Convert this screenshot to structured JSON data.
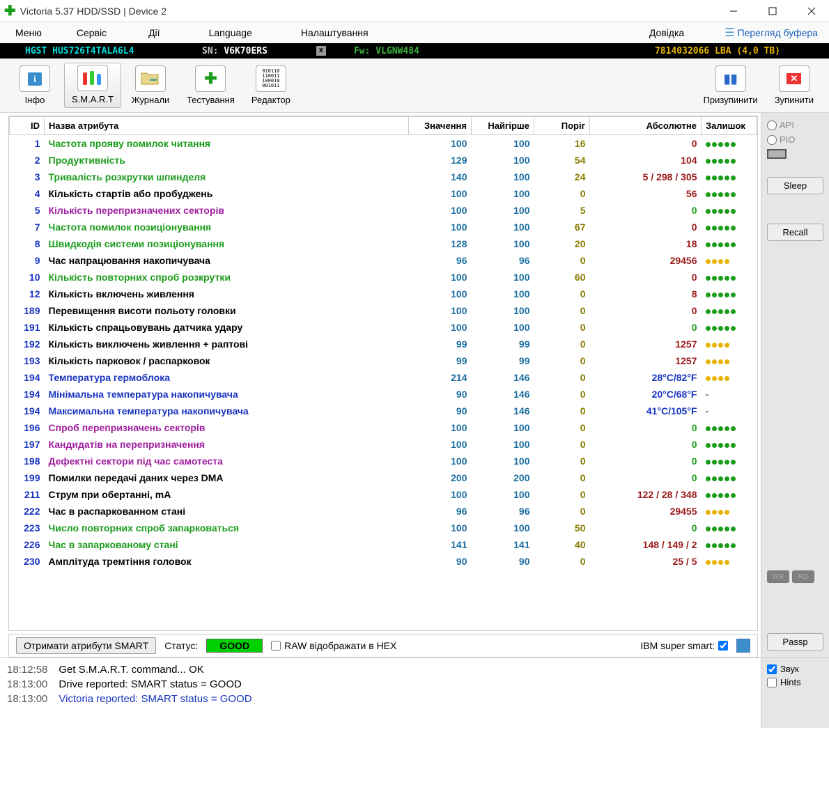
{
  "window": {
    "title": "Victoria 5.37 HDD/SSD | Device 2"
  },
  "menu": {
    "items": [
      "Меню",
      "Сервіс",
      "Дії",
      "Language",
      "Налаштування",
      "Довідка"
    ],
    "buffer": "Перегляд буфера"
  },
  "infobar": {
    "model": "HGST HUS726T4TALA6L4",
    "sn_label": "SN:",
    "sn": "V6K70ERS",
    "fw": "Fw: VLGNW484",
    "lba": "7814032066 LBA (4,0 TB)"
  },
  "toolbar": {
    "info": "Інфо",
    "smart": "S.M.A.R.T",
    "logs": "Журнали",
    "test": "Тестування",
    "editor": "Редактор",
    "pause": "Призупинити",
    "stop": "Зупинити"
  },
  "table": {
    "headers": {
      "id": "ID",
      "name": "Назва атрибута",
      "val": "Значення",
      "worst": "Найгірше",
      "thr": "Поріг",
      "abs": "Абсолютне",
      "health": "Залишок"
    },
    "rows": [
      {
        "id": 1,
        "name": "Частота прояву помилок читання",
        "name_c": "c-green",
        "val": 100,
        "worst": 100,
        "thr": 16,
        "thr_c": "c-olive",
        "abs": "0",
        "abs_c": "c-darkred",
        "h": "g5"
      },
      {
        "id": 2,
        "name": "Продуктивність",
        "name_c": "c-green",
        "val": 129,
        "worst": 100,
        "thr": 54,
        "thr_c": "c-olive",
        "abs": "104",
        "abs_c": "c-darkred",
        "h": "g5"
      },
      {
        "id": 3,
        "name": "Тривалість розкрутки шпинделя",
        "name_c": "c-green",
        "val": 140,
        "worst": 100,
        "thr": 24,
        "thr_c": "c-olive",
        "abs": "5 / 298 / 305",
        "abs_c": "c-darkred",
        "h": "g5"
      },
      {
        "id": 4,
        "name": "Кількість стартів або пробуджень",
        "name_c": "c-black",
        "val": 100,
        "worst": 100,
        "thr": 0,
        "thr_c": "c-olive",
        "abs": "56",
        "abs_c": "c-darkred",
        "h": "g5"
      },
      {
        "id": 5,
        "name": "Кількість перепризначених секторів",
        "name_c": "c-purple",
        "val": 100,
        "worst": 100,
        "thr": 5,
        "thr_c": "c-olive",
        "abs": "0",
        "abs_c": "c-green",
        "h": "g5"
      },
      {
        "id": 7,
        "name": "Частота помилок позиціонування",
        "name_c": "c-green",
        "val": 100,
        "worst": 100,
        "thr": 67,
        "thr_c": "c-olive",
        "abs": "0",
        "abs_c": "c-darkred",
        "h": "g5"
      },
      {
        "id": 8,
        "name": "Швидкодія системи позиціонування",
        "name_c": "c-green",
        "val": 128,
        "worst": 100,
        "thr": 20,
        "thr_c": "c-olive",
        "abs": "18",
        "abs_c": "c-darkred",
        "h": "g5"
      },
      {
        "id": 9,
        "name": "Час напрацювання накопичувача",
        "name_c": "c-black",
        "val": 96,
        "worst": 96,
        "thr": 0,
        "thr_c": "c-olive",
        "abs": "29456",
        "abs_c": "c-darkred",
        "h": "y4"
      },
      {
        "id": 10,
        "name": "Кількість повторних спроб розкрутки",
        "name_c": "c-green",
        "val": 100,
        "worst": 100,
        "thr": 60,
        "thr_c": "c-olive",
        "abs": "0",
        "abs_c": "c-darkred",
        "h": "g5"
      },
      {
        "id": 12,
        "name": "Кількість включень живлення",
        "name_c": "c-black",
        "val": 100,
        "worst": 100,
        "thr": 0,
        "thr_c": "c-olive",
        "abs": "8",
        "abs_c": "c-darkred",
        "h": "g5"
      },
      {
        "id": 189,
        "name": "Перевищення висоти польоту головки",
        "name_c": "c-black",
        "val": 100,
        "worst": 100,
        "thr": 0,
        "thr_c": "c-olive",
        "abs": "0",
        "abs_c": "c-darkred",
        "h": "g5"
      },
      {
        "id": 191,
        "name": "Кількість спрацьовувань датчика удару",
        "name_c": "c-black",
        "val": 100,
        "worst": 100,
        "thr": 0,
        "thr_c": "c-olive",
        "abs": "0",
        "abs_c": "c-green",
        "h": "g5"
      },
      {
        "id": 192,
        "name": "Кількість виключень живлення + раптові",
        "name_c": "c-black",
        "val": 99,
        "worst": 99,
        "thr": 0,
        "thr_c": "c-olive",
        "abs": "1257",
        "abs_c": "c-darkred",
        "h": "y4"
      },
      {
        "id": 193,
        "name": "Кількість парковок / распарковок",
        "name_c": "c-black",
        "val": 99,
        "worst": 99,
        "thr": 0,
        "thr_c": "c-olive",
        "abs": "1257",
        "abs_c": "c-darkred",
        "h": "y4"
      },
      {
        "id": 194,
        "name": "Температура гермоблока",
        "name_c": "c-blue",
        "val": 214,
        "worst": 146,
        "thr": 0,
        "thr_c": "c-olive",
        "abs": "28°C/82°F",
        "abs_c": "c-blue",
        "h": "y4"
      },
      {
        "id": 194,
        "name": "Мінімальна температура накопичувача",
        "name_c": "c-blue",
        "val": 90,
        "worst": 146,
        "thr": 0,
        "thr_c": "c-olive",
        "abs": "20°C/68°F",
        "abs_c": "c-blue",
        "h": "-"
      },
      {
        "id": 194,
        "name": "Максимальна температура накопичувача",
        "name_c": "c-blue",
        "val": 90,
        "worst": 146,
        "thr": 0,
        "thr_c": "c-olive",
        "abs": "41°C/105°F",
        "abs_c": "c-blue",
        "h": "-"
      },
      {
        "id": 196,
        "name": "Спроб перепризначень секторів",
        "name_c": "c-purple",
        "val": 100,
        "worst": 100,
        "thr": 0,
        "thr_c": "c-olive",
        "abs": "0",
        "abs_c": "c-green",
        "h": "g5"
      },
      {
        "id": 197,
        "name": "Кандидатів на перепризначення",
        "name_c": "c-purple",
        "val": 100,
        "worst": 100,
        "thr": 0,
        "thr_c": "c-olive",
        "abs": "0",
        "abs_c": "c-green",
        "h": "g5"
      },
      {
        "id": 198,
        "name": "Дефектні сектори під час самотеста",
        "name_c": "c-purple",
        "val": 100,
        "worst": 100,
        "thr": 0,
        "thr_c": "c-olive",
        "abs": "0",
        "abs_c": "c-green",
        "h": "g5"
      },
      {
        "id": 199,
        "name": "Помилки передачі даних через DMA",
        "name_c": "c-black",
        "val": 200,
        "worst": 200,
        "thr": 0,
        "thr_c": "c-olive",
        "abs": "0",
        "abs_c": "c-green",
        "h": "g5"
      },
      {
        "id": 211,
        "name": "Струм при обертанні, mA",
        "name_c": "c-black",
        "val": 100,
        "worst": 100,
        "thr": 0,
        "thr_c": "c-olive",
        "abs": "122 / 28 / 348",
        "abs_c": "c-darkred",
        "h": "g5"
      },
      {
        "id": 222,
        "name": "Час в распаркованном стані",
        "name_c": "c-black",
        "val": 96,
        "worst": 96,
        "thr": 0,
        "thr_c": "c-olive",
        "abs": "29455",
        "abs_c": "c-darkred",
        "h": "y4"
      },
      {
        "id": 223,
        "name": "Число повторних спроб запарковаться",
        "name_c": "c-green",
        "val": 100,
        "worst": 100,
        "thr": 50,
        "thr_c": "c-olive",
        "abs": "0",
        "abs_c": "c-green",
        "h": "g5"
      },
      {
        "id": 226,
        "name": "Час в запаркованому стані",
        "name_c": "c-green",
        "val": 141,
        "worst": 141,
        "thr": 40,
        "thr_c": "c-olive",
        "abs": "148 / 149 / 2",
        "abs_c": "c-darkred",
        "h": "g5"
      },
      {
        "id": 230,
        "name": "Амплітуда тремтіння головок",
        "name_c": "c-black",
        "val": 90,
        "worst": 90,
        "thr": 0,
        "thr_c": "c-olive",
        "abs": "25 / 5",
        "abs_c": "c-darkred",
        "h": "y4"
      }
    ]
  },
  "right": {
    "api": "API",
    "pio": "PIO",
    "sleep": "Sleep",
    "recall": "Recall",
    "wr": "WR",
    "rd": "RD",
    "passp": "Passp"
  },
  "ctl": {
    "get_smart": "Отримати атрибути SMART",
    "status_label": "Статус:",
    "status": "GOOD",
    "raw_hex": "RAW відображати в HEX",
    "ibm": "IBM super smart:"
  },
  "log": {
    "rows": [
      {
        "t": "18:12:58",
        "m": "Get S.M.A.R.T. command... OK",
        "c": ""
      },
      {
        "t": "18:13:00",
        "m": "Drive reported: SMART status = GOOD",
        "c": ""
      },
      {
        "t": "18:13:00",
        "m": "Victoria reported: SMART status = GOOD",
        "c": "blue"
      }
    ],
    "sound": "Звук",
    "hints": "Hints"
  }
}
